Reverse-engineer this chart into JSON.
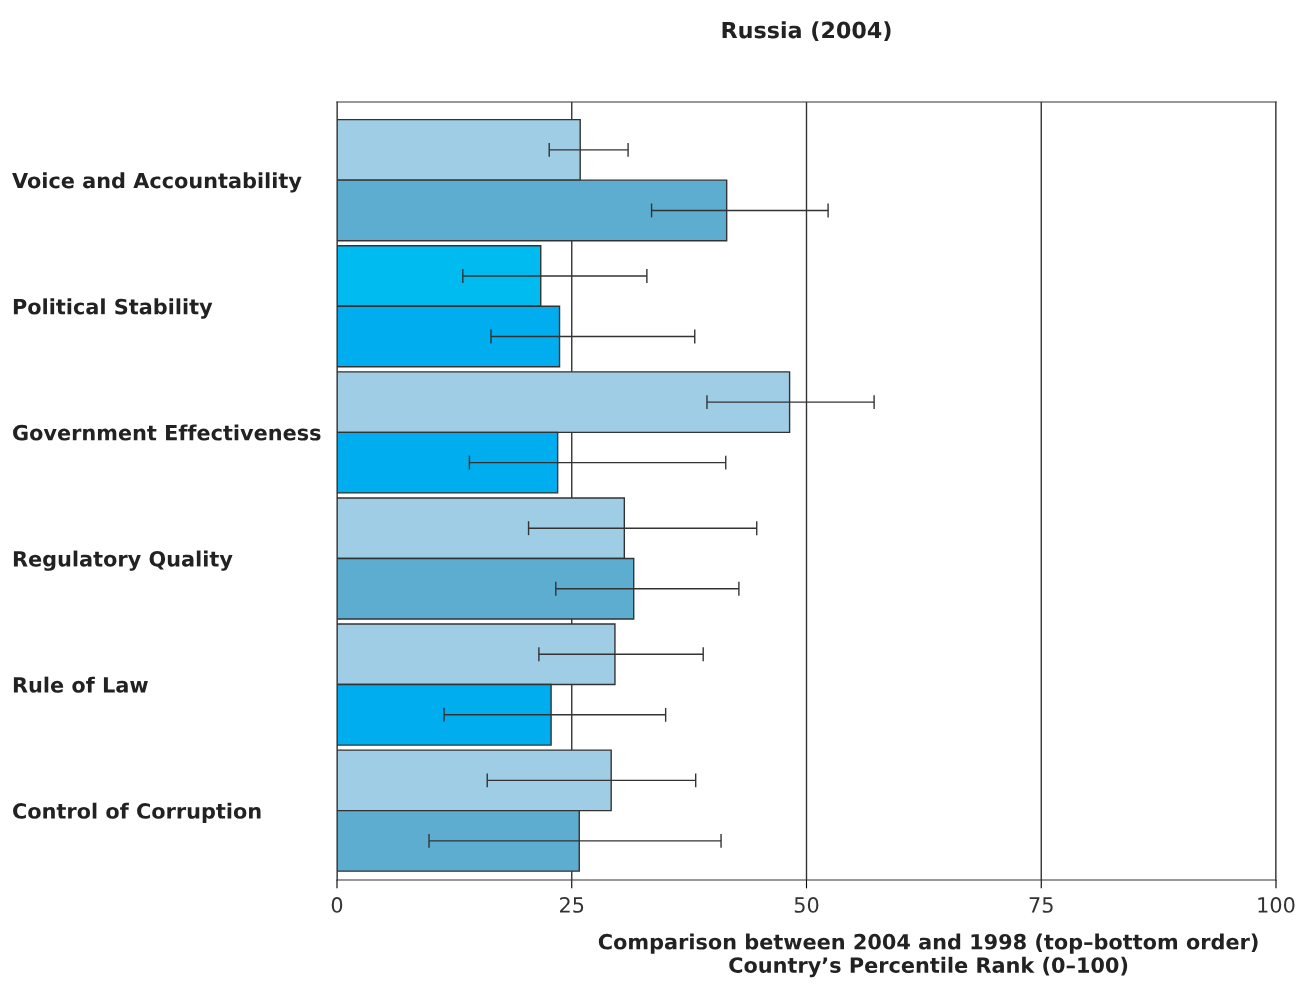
{
  "chart_data": {
    "type": "bar",
    "orientation": "horizontal",
    "title": "Russia (2004)",
    "xlabel": "Comparison between 2004 and 1998 (top–bottom order)\nCountry’s Percentile Rank (0–100)",
    "categories": [
      "Voice and Accountability",
      "Political Stability",
      "Government Effectiveness",
      "Regulatory Quality",
      "Rule of Law",
      "Control of Corruption"
    ],
    "series": [
      {
        "colors": [
          "#9fcde5",
          "#00bbf0",
          "#9fcde5",
          "#9fcde5",
          "#9fcde5",
          "#9fcde5"
        ],
        "values": [
          25.9,
          21.7,
          48.2,
          30.6,
          29.6,
          29.2
        ],
        "errors": [
          [
            22.6,
            31.0
          ],
          [
            13.4,
            33.0
          ],
          [
            39.4,
            57.2
          ],
          [
            20.4,
            44.7
          ],
          [
            21.5,
            39.0
          ],
          [
            16.0,
            38.2
          ]
        ]
      },
      {
        "colors": [
          "#5dadd1",
          "#00aeef",
          "#00aeef",
          "#5dadd1",
          "#00aeef",
          "#5dadd1"
        ],
        "values": [
          41.5,
          23.7,
          23.5,
          31.6,
          22.8,
          25.8
        ],
        "errors": [
          [
            33.5,
            52.3
          ],
          [
            16.4,
            38.1
          ],
          [
            14.1,
            41.4
          ],
          [
            23.3,
            42.8
          ],
          [
            11.4,
            35.0
          ],
          [
            9.8,
            40.9
          ]
        ]
      }
    ],
    "xlim": [
      0,
      100
    ],
    "xticks": [
      0,
      25,
      50,
      75,
      100
    ],
    "grid": "x"
  }
}
